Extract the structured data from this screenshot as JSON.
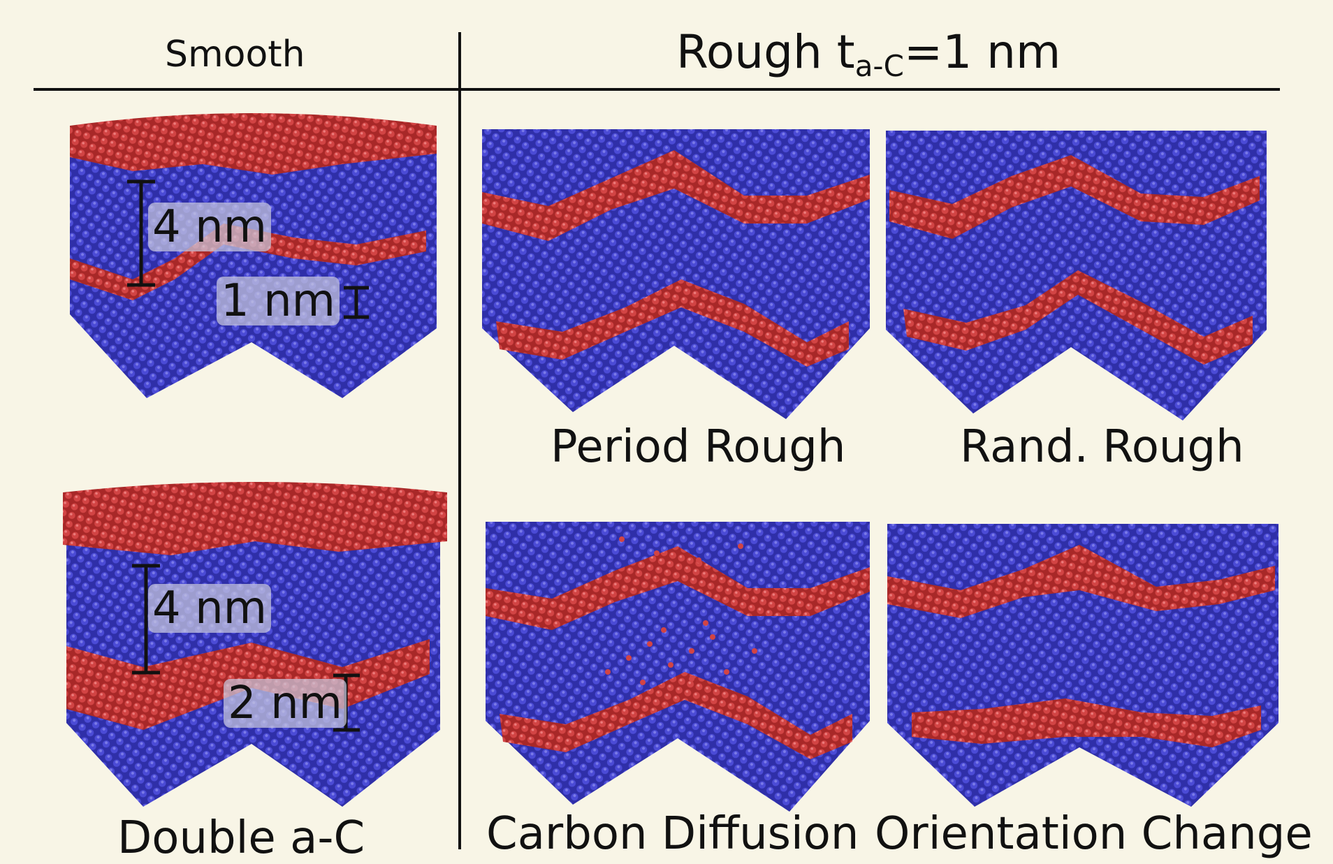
{
  "header": {
    "left": "Smooth",
    "right_prefix": "Rough t",
    "right_sub": "a-C",
    "right_suffix": "=1 nm"
  },
  "panels": {
    "smooth_single": {
      "label_thick": "4 nm",
      "label_thin": "1 nm"
    },
    "smooth_double": {
      "label_thick": "4 nm",
      "label_thin": "2 nm",
      "caption": "Double a-C"
    },
    "period_rough": {
      "caption": "Period Rough"
    },
    "rand_rough": {
      "caption": "Rand. Rough"
    },
    "carbon_diffusion": {
      "caption": "Carbon Diffusion"
    },
    "orientation_change": {
      "caption": "Orientation Change"
    }
  },
  "colors": {
    "background": "#f8f5e6",
    "crystal": "#3c3cc0",
    "amorphous_carbon": "#c83838"
  }
}
